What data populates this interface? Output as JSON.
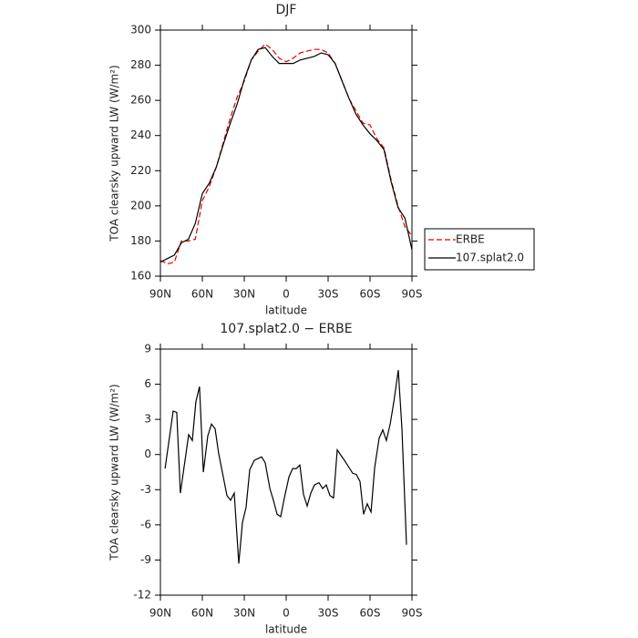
{
  "chart_data": [
    {
      "type": "line",
      "title": "DJF",
      "xlabel": "latitude",
      "ylabel": "TOA clearsky upward LW (W/m²)",
      "x": [
        90,
        85,
        80,
        75,
        70,
        65,
        60,
        55,
        50,
        45,
        40,
        35,
        30,
        25,
        20,
        15,
        10,
        5,
        0,
        -5,
        -10,
        -15,
        -20,
        -25,
        -30,
        -35,
        -40,
        -45,
        -50,
        -55,
        -60,
        -65,
        -70,
        -75,
        -80,
        -85,
        -90
      ],
      "series": [
        {
          "name": "ERBE",
          "color": "#dd0000",
          "linestyle": "dashed",
          "values": [
            169,
            167,
            168,
            180,
            180,
            181,
            203,
            211,
            222,
            236,
            250,
            262,
            271,
            283,
            288,
            292,
            289,
            284,
            282,
            284,
            287,
            288,
            289,
            289,
            287,
            281,
            271,
            261,
            254,
            247,
            246,
            238,
            233,
            215,
            200,
            188,
            183
          ]
        },
        {
          "name": "107.splat2.0",
          "color": "#000000",
          "linestyle": "solid",
          "values": [
            168,
            170,
            172,
            179,
            181,
            190,
            207,
            213,
            222,
            235,
            247,
            258,
            272,
            283,
            289,
            290,
            285,
            281,
            281,
            281,
            283,
            284,
            285,
            287,
            286,
            281,
            271,
            261,
            252,
            246,
            241,
            237,
            232,
            214,
            199,
            193,
            175
          ]
        }
      ],
      "xlim": [
        90,
        -90
      ],
      "xticks": [
        {
          "value": 90,
          "label": "90N"
        },
        {
          "value": 60,
          "label": "60N"
        },
        {
          "value": 30,
          "label": "30N"
        },
        0,
        {
          "value": -30,
          "label": "30S"
        },
        {
          "value": -60,
          "label": "60S"
        },
        {
          "value": -90,
          "label": "90S"
        }
      ],
      "ylim": [
        160,
        300
      ],
      "yticks": [
        160,
        180,
        200,
        220,
        240,
        260,
        280,
        300
      ],
      "legend": "outside right"
    },
    {
      "type": "line",
      "title": "107.splat2.0 − ERBE",
      "xlabel": "latitude",
      "ylabel": "TOA clearsky upward LW (W/m²)",
      "x": [
        86.7,
        80.9,
        78.3,
        75.7,
        69.8,
        67.2,
        64.6,
        62.0,
        59.3,
        56.1,
        53.5,
        50.9,
        48.3,
        42.4,
        39.8,
        37.2,
        33.9,
        31.3,
        28.7,
        26.1,
        22.8,
        17.6,
        15.0,
        11.7,
        9.1,
        6.5,
        3.9,
        1.3,
        -2.0,
        -4.6,
        -7.2,
        -9.8,
        -12.4,
        -15.0,
        -17.6,
        -20.2,
        -23.5,
        -26.1,
        -28.7,
        -31.3,
        -33.9,
        -36.5,
        -41.7,
        -47.6,
        -50.2,
        -52.8,
        -55.4,
        -58.0,
        -60.7,
        -63.3,
        -66.5,
        -69.1,
        -71.7,
        -74.4,
        -77.0,
        -80.2,
        -82.8,
        -86.1
      ],
      "values": [
        -1.2,
        3.7,
        3.6,
        -3.3,
        1.7,
        1.2,
        4.5,
        5.8,
        -1.5,
        1.6,
        2.6,
        2.2,
        0.1,
        -3.5,
        -3.9,
        -3.3,
        -9.3,
        -5.8,
        -4.5,
        -1.3,
        -0.5,
        -0.2,
        -0.7,
        -2.9,
        -3.9,
        -5.1,
        -5.3,
        -3.7,
        -1.9,
        -1.2,
        -1.2,
        -0.9,
        -3.4,
        -4.4,
        -3.3,
        -2.6,
        -2.4,
        -2.9,
        -2.6,
        -3.5,
        -3.7,
        0.4,
        -0.5,
        -1.6,
        -1.7,
        -2.3,
        -5.1,
        -4.2,
        -4.9,
        -1.1,
        1.4,
        2.1,
        1.2,
        2.6,
        4.5,
        7.2,
        2.2,
        -7.7
      ],
      "color": "#000000",
      "xlim": [
        90,
        -90
      ],
      "xticks": [
        {
          "value": 90,
          "label": "90N"
        },
        {
          "value": 60,
          "label": "60N"
        },
        {
          "value": 30,
          "label": "30N"
        },
        0,
        {
          "value": -30,
          "label": "30S"
        },
        {
          "value": -60,
          "label": "60S"
        },
        {
          "value": -90,
          "label": "90S"
        }
      ],
      "ylim": [
        -12,
        9
      ],
      "yticks": [
        -12,
        -9,
        -6,
        -3,
        0,
        3,
        6,
        9
      ]
    }
  ]
}
